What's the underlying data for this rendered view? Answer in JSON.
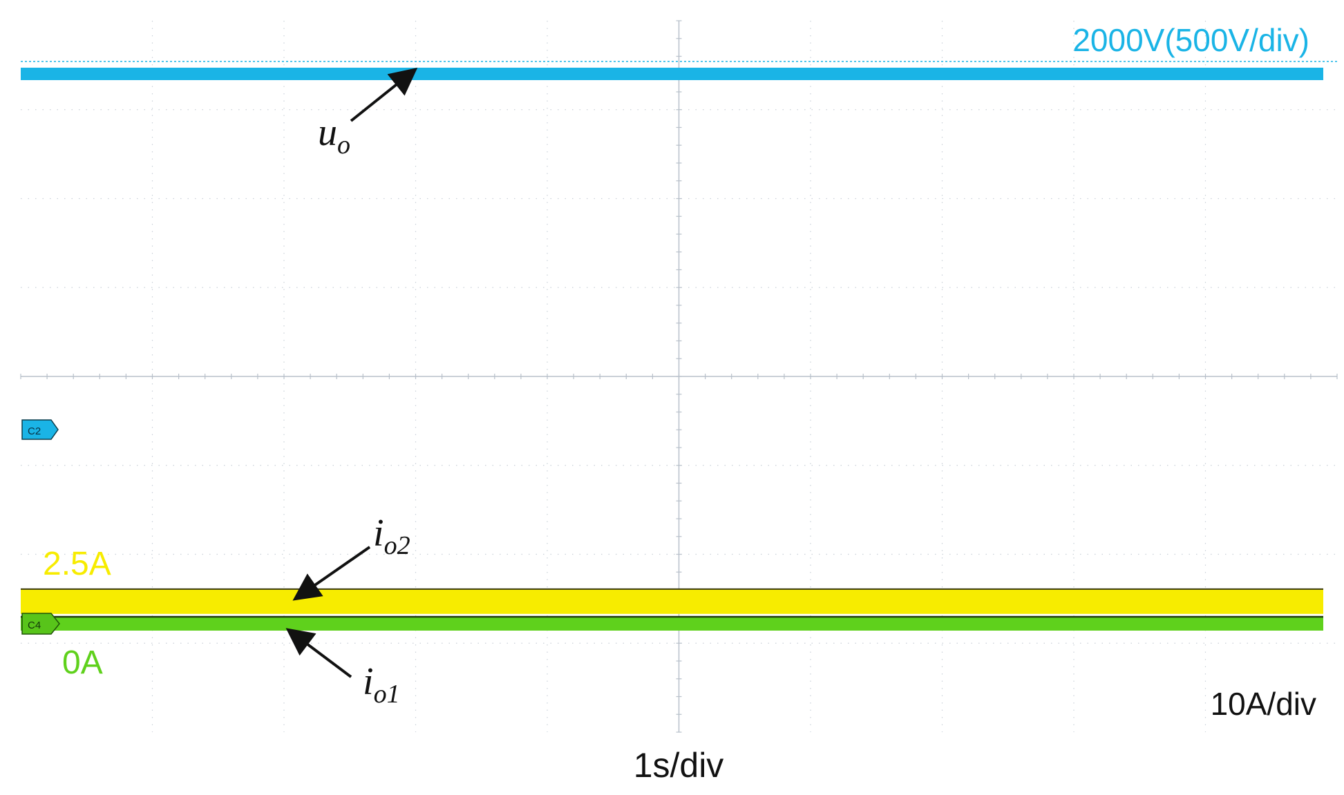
{
  "chart_data": {
    "type": "line",
    "title": "",
    "xlabel": "1s/div",
    "ylabel": "",
    "grid": true,
    "x_divisions": 10,
    "y_divisions": 8,
    "series": [
      {
        "name": "u_o",
        "channel": "C2",
        "color": "#1ab4e6",
        "scale_label": "2000V(500V/div)",
        "unit": "V",
        "volts_per_div": 500,
        "value": 2000,
        "symbol": "u",
        "subscript": "o",
        "x": [
          0,
          10
        ],
        "y": [
          2000,
          2000
        ]
      },
      {
        "name": "i_o2",
        "channel": "C3",
        "color": "#f7ec00",
        "scale_label": "2.5A",
        "unit": "A",
        "amps_per_div": 10,
        "value": 2.5,
        "symbol": "i",
        "subscript": "o2",
        "x": [
          0,
          10
        ],
        "y": [
          2.5,
          2.5
        ]
      },
      {
        "name": "i_o1",
        "channel": "C4",
        "color": "#5fd11c",
        "scale_label": "0A",
        "unit": "A",
        "amps_per_div": 10,
        "value": 0,
        "symbol": "i",
        "subscript": "o1",
        "x": [
          0,
          10
        ],
        "y": [
          0,
          0
        ]
      }
    ],
    "current_scale_label": "10A/div",
    "channel_markers": [
      "C2",
      "C4"
    ]
  }
}
